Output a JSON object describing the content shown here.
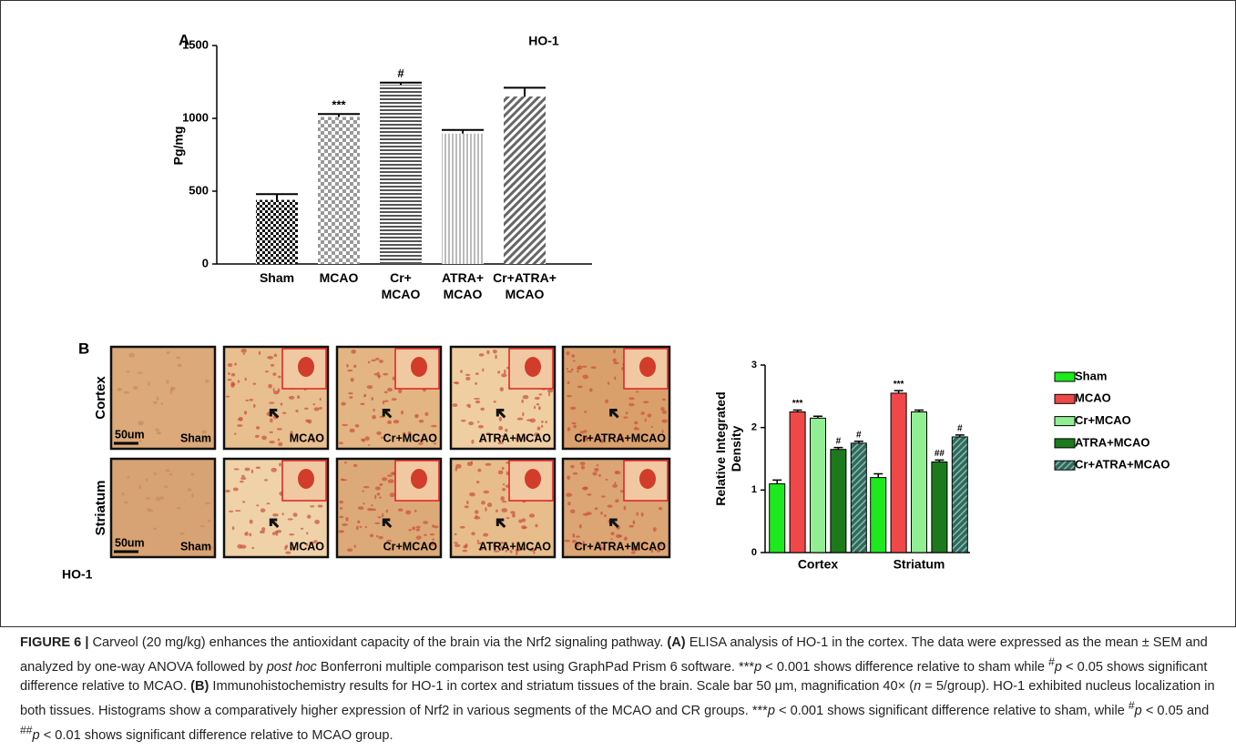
{
  "panel_a": {
    "label": "A"
  },
  "panel_b": {
    "label": "B",
    "rows": [
      "Cortex",
      "Striatum"
    ],
    "columns": [
      "Sham",
      "MCAO",
      "Cr+MCAO",
      "ATRA+MCAO",
      "Cr+ATRA+MCAO"
    ],
    "scale_bar": "50um",
    "protein": "HO-1"
  },
  "chart_data": [
    {
      "type": "bar",
      "title": "HO-1",
      "y_label": "Pg/mg",
      "categories": [
        "Sham",
        "MCAO",
        "Cr+\nMCAO",
        "ATRA+\nMCAO",
        "Cr+ATRA+\nMCAO"
      ],
      "values": [
        440,
        1010,
        1230,
        895,
        1150
      ],
      "errors": [
        40,
        20,
        15,
        25,
        60
      ],
      "annotations": [
        null,
        "***",
        "#",
        null,
        null
      ],
      "ylim": [
        0,
        1500
      ],
      "yticks": [
        0,
        500,
        1000,
        1500
      ]
    },
    {
      "type": "bar",
      "y_label": "Relative Integrated Density",
      "categories": [
        "Cortex",
        "Striatum"
      ],
      "series": [
        {
          "name": "Sham",
          "color": "#1ee81e",
          "values": [
            1.1,
            1.2
          ],
          "errors": [
            0.06,
            0.06
          ],
          "annotations": [
            null,
            null
          ]
        },
        {
          "name": "MCAO",
          "color": "#f04848",
          "values": [
            2.25,
            2.55
          ],
          "errors": [
            0.03,
            0.04
          ],
          "annotations": [
            "***",
            "***"
          ]
        },
        {
          "name": "Cr+MCAO",
          "color": "#92ee92",
          "values": [
            2.15,
            2.25
          ],
          "errors": [
            0.03,
            0.03
          ],
          "annotations": [
            null,
            null
          ]
        },
        {
          "name": "ATRA+MCAO",
          "color": "#1c7a1c",
          "values": [
            1.65,
            1.45
          ],
          "errors": [
            0.03,
            0.03
          ],
          "annotations": [
            "#",
            "##"
          ]
        },
        {
          "name": "Cr+ATRA+MCAO",
          "color": "#2d6b5c",
          "values": [
            1.75,
            1.85
          ],
          "errors": [
            0.03,
            0.03
          ],
          "annotations": [
            "#",
            "#"
          ]
        }
      ],
      "ylim": [
        0,
        3
      ],
      "yticks": [
        0,
        1,
        2,
        3
      ],
      "legend": "right"
    }
  ],
  "caption": {
    "label": "FIGURE 6 |",
    "parts": [
      " Carveol (20 mg/kg) enhances the antioxidant capacity of the brain via the Nrf2 signaling pathway. ",
      "(A)",
      " ELISA analysis of HO-1 in the cortex. The data were expressed as the mean ± SEM and analyzed by one-way ANOVA followed by ",
      "post hoc",
      " Bonferroni multiple comparison test using GraphPad Prism 6 software. ***",
      "p",
      " < 0.001 shows difference relative to sham while ",
      "#",
      "p",
      " < 0.05 shows significant difference relative to MCAO. ",
      "(B)",
      " Immunohistochemistry results for HO-1 in cortex and striatum tissues of the brain. Scale bar 50 μm, magnification 40× (",
      "n",
      " = 5/group). HO-1 exhibited nucleus localization in both tissues. Histograms show a comparatively higher expression of Nrf2 in various segments of the MCAO and CR groups. ***",
      "p",
      " < 0.001 shows significant difference relative to sham, while ",
      "#",
      "p",
      " < 0.05 and ",
      "##",
      "p",
      " < 0.01 shows significant difference relative to MCAO group."
    ]
  }
}
